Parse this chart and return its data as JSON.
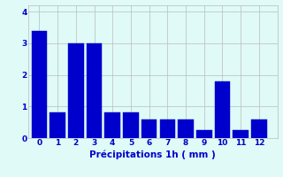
{
  "categories": [
    0,
    1,
    2,
    3,
    4,
    5,
    6,
    7,
    8,
    9,
    10,
    11,
    12
  ],
  "values": [
    3.4,
    0.8,
    3.0,
    3.0,
    0.8,
    0.8,
    0.6,
    0.6,
    0.6,
    0.25,
    1.8,
    0.25,
    0.6
  ],
  "bar_color": "#0000CC",
  "background_color": "#DFFAF7",
  "grid_color": "#BBBBBB",
  "xlabel": "Précipitations 1h ( mm )",
  "xlabel_color": "#0000CC",
  "tick_color": "#0000CC",
  "ylim": [
    0,
    4.2
  ],
  "yticks": [
    0,
    1,
    2,
    3,
    4
  ],
  "xlim": [
    -0.6,
    13.0
  ],
  "bar_width": 0.85,
  "tick_fontsize": 6.5,
  "xlabel_fontsize": 7.5
}
